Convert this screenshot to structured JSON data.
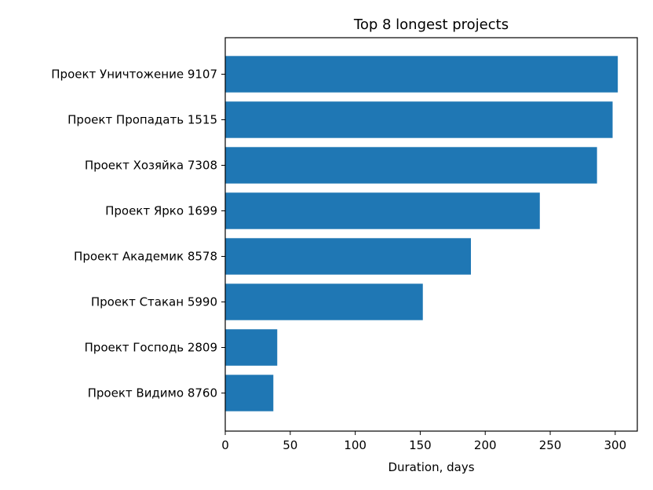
{
  "chart_data": {
    "type": "bar",
    "orientation": "horizontal",
    "title": "Top 8 longest projects",
    "xlabel": "Duration, days",
    "ylabel": "",
    "xlim": [
      0,
      317
    ],
    "xticks": [
      0,
      50,
      100,
      150,
      200,
      250,
      300
    ],
    "categories": [
      "Проект Уничтожение 9107",
      "Проект Пропадать 1515",
      "Проект Хозяйка 7308",
      "Проект Ярко 1699",
      "Проект Академик 8578",
      "Проект Стакан 5990",
      "Проект Господь 2809",
      "Проект Видимо 8760"
    ],
    "values": [
      302,
      298,
      286,
      242,
      189,
      152,
      40,
      37
    ],
    "bar_color": "#1f77b4",
    "grid": false
  }
}
